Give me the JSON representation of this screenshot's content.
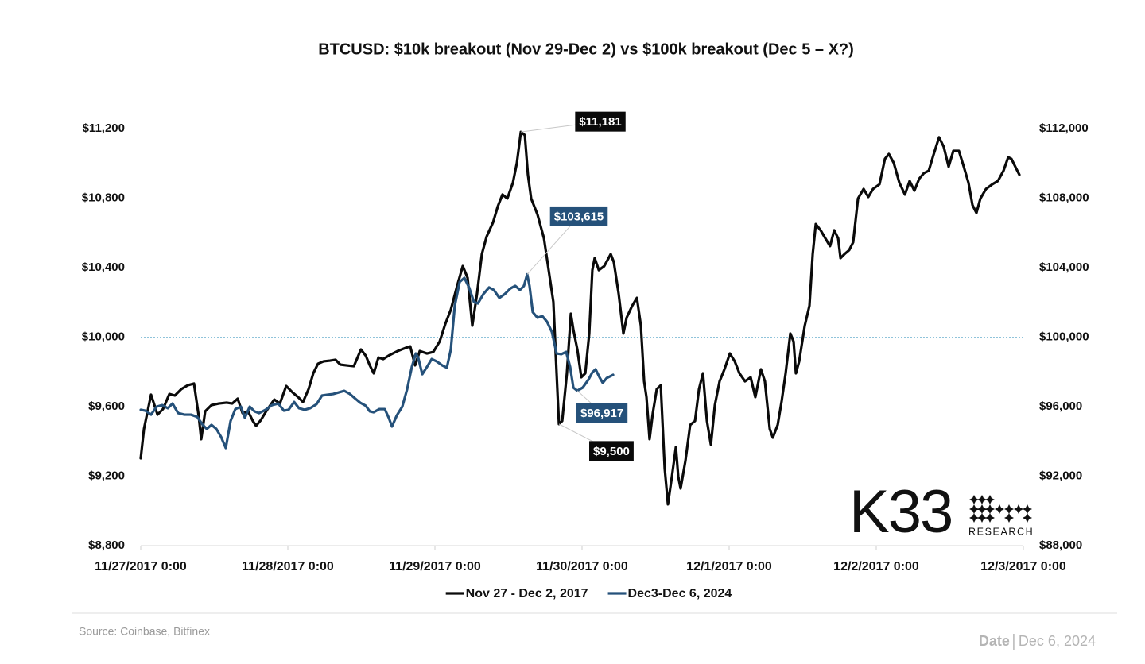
{
  "chart_data": {
    "type": "line",
    "title": "BTCUSD: $10k breakout (Nov 29-Dec 2) vs $100k breakout (Dec 5 – X?)",
    "xlim": [
      0,
      6
    ],
    "xticks": [
      {
        "value": 0,
        "label": "11/27/2017 0:00"
      },
      {
        "value": 1,
        "label": "11/28/2017 0:00"
      },
      {
        "value": 2,
        "label": "11/29/2017 0:00"
      },
      {
        "value": 3,
        "label": "11/30/2017 0:00"
      },
      {
        "value": 4,
        "label": "12/1/2017 0:00"
      },
      {
        "value": 5,
        "label": "12/2/2017 0:00"
      },
      {
        "value": 6,
        "label": "12/3/2017 0:00"
      }
    ],
    "ylim": [
      8800,
      11200
    ],
    "yticks": [
      {
        "value": 8800,
        "label": "$8,800"
      },
      {
        "value": 9200,
        "label": "$9,200"
      },
      {
        "value": 9600,
        "label": "$9,600"
      },
      {
        "value": 10000,
        "label": "$10,000"
      },
      {
        "value": 10400,
        "label": "$10,400"
      },
      {
        "value": 10800,
        "label": "$10,800"
      },
      {
        "value": 11200,
        "label": "$11,200"
      }
    ],
    "y2lim": [
      88000,
      112000
    ],
    "y2ticks": [
      {
        "value": 88000,
        "label": "$88,000"
      },
      {
        "value": 92000,
        "label": "$92,000"
      },
      {
        "value": 96000,
        "label": "$96,000"
      },
      {
        "value": 100000,
        "label": "$100,000"
      },
      {
        "value": 104000,
        "label": "$104,000"
      },
      {
        "value": 108000,
        "label": "$108,000"
      },
      {
        "value": 112000,
        "label": "$112,000"
      }
    ],
    "reference_line": 10000,
    "legend": "bottom",
    "series": [
      {
        "name": "Nov 27 - Dec 2, 2017",
        "color": "#0a0a0a",
        "axis": "y",
        "x": [
          0,
          0.022,
          0.07,
          0.114,
          0.151,
          0.195,
          0.232,
          0.276,
          0.319,
          0.362,
          0.395,
          0.411,
          0.438,
          0.481,
          0.53,
          0.584,
          0.622,
          0.659,
          0.692,
          0.73,
          0.762,
          0.784,
          0.816,
          0.859,
          0.908,
          0.946,
          0.989,
          1.032,
          1.07,
          1.103,
          1.141,
          1.173,
          1.205,
          1.243,
          1.286,
          1.324,
          1.357,
          1.395,
          1.449,
          1.497,
          1.53,
          1.557,
          1.584,
          1.616,
          1.649,
          1.692,
          1.746,
          1.8,
          1.832,
          1.865,
          1.897,
          1.946,
          1.989,
          2.032,
          2.07,
          2.108,
          2.151,
          2.189,
          2.222,
          2.254,
          2.286,
          2.319,
          2.351,
          2.395,
          2.427,
          2.459,
          2.492,
          2.53,
          2.557,
          2.584,
          2.611,
          2.632,
          2.654,
          2.697,
          2.741,
          2.773,
          2.805,
          2.827,
          2.843,
          2.865,
          2.897,
          2.924,
          2.941,
          2.968,
          2.995,
          3.022,
          3.049,
          3.07,
          3.086,
          3.114,
          3.151,
          3.195,
          3.216,
          3.249,
          3.281,
          3.303,
          3.341,
          3.373,
          3.4,
          3.422,
          3.438,
          3.459,
          3.481,
          3.508,
          3.535,
          3.562,
          3.584,
          3.611,
          3.638,
          3.654,
          3.67,
          3.703,
          3.735,
          3.768,
          3.795,
          3.822,
          3.849,
          3.876,
          3.903,
          3.935,
          3.968,
          4.005,
          4.038,
          4.07,
          4.108,
          4.146,
          4.178,
          4.216,
          4.243,
          4.276,
          4.297,
          4.33,
          4.357,
          4.384,
          4.416,
          4.438,
          4.454,
          4.476,
          4.514,
          4.546,
          4.568,
          4.589,
          4.622,
          4.654,
          4.686,
          4.714,
          4.741,
          4.757,
          4.784,
          4.816,
          4.843,
          4.876,
          4.914,
          4.946,
          4.978,
          5.022,
          5.059,
          5.086,
          5.119,
          5.157,
          5.195,
          5.227,
          5.259,
          5.292,
          5.324,
          5.357,
          5.389,
          5.427,
          5.459,
          5.492,
          5.524,
          5.562,
          5.595,
          5.627,
          5.654,
          5.681,
          5.708,
          5.746,
          5.789,
          5.827,
          5.865,
          5.897,
          5.919,
          5.951,
          5.973
        ],
        "values": [
          9303,
          9472,
          9669,
          9554,
          9586,
          9673,
          9664,
          9701,
          9723,
          9733,
          9541,
          9413,
          9573,
          9609,
          9618,
          9623,
          9618,
          9646,
          9563,
          9573,
          9518,
          9490,
          9522,
          9582,
          9641,
          9618,
          9719,
          9682,
          9655,
          9627,
          9701,
          9792,
          9847,
          9861,
          9865,
          9870,
          9842,
          9838,
          9833,
          9929,
          9893,
          9838,
          9792,
          9883,
          9874,
          9897,
          9920,
          9938,
          9947,
          9838,
          9920,
          9906,
          9915,
          9975,
          10075,
          10158,
          10295,
          10409,
          10341,
          10066,
          10249,
          10478,
          10578,
          10661,
          10752,
          10821,
          10798,
          10889,
          11003,
          11181,
          11163,
          10935,
          10798,
          10706,
          10569,
          10386,
          10203,
          9792,
          9500,
          9518,
          9792,
          10135,
          10043,
          9929,
          9769,
          9792,
          10021,
          10386,
          10455,
          10386,
          10409,
          10478,
          10432,
          10249,
          10021,
          10112,
          10181,
          10226,
          10066,
          9746,
          9655,
          9413,
          9563,
          9701,
          9723,
          9243,
          9038,
          9198,
          9367,
          9198,
          9129,
          9289,
          9495,
          9518,
          9701,
          9792,
          9518,
          9381,
          9609,
          9746,
          9815,
          9906,
          9861,
          9792,
          9746,
          9769,
          9655,
          9815,
          9746,
          9472,
          9422,
          9495,
          9632,
          9792,
          10021,
          9975,
          9792,
          9861,
          10066,
          10181,
          10478,
          10651,
          10615,
          10569,
          10524,
          10615,
          10569,
          10455,
          10478,
          10501,
          10546,
          10798,
          10853,
          10807,
          10853,
          10880,
          11026,
          11054,
          11003,
          10889,
          10821,
          10899,
          10843,
          10912,
          10944,
          10958,
          11049,
          11150,
          11095,
          10981,
          11072,
          11072,
          10981,
          10889,
          10761,
          10715,
          10798,
          10853,
          10880,
          10899,
          10958,
          11035,
          11026,
          10971,
          10935
        ],
        "value_labels": [
          null,
          null,
          null,
          null,
          null,
          null,
          null,
          null,
          null,
          null,
          null,
          null,
          null,
          null,
          null,
          null,
          null,
          null,
          null,
          null,
          null,
          null,
          null,
          null,
          null,
          null,
          null,
          null,
          null,
          null,
          null,
          null,
          null,
          null,
          null,
          null,
          null,
          null,
          null,
          null,
          null,
          null,
          null,
          null,
          null,
          null,
          null,
          null,
          null,
          null,
          null,
          null,
          null,
          null,
          null,
          null,
          null,
          null,
          null,
          null,
          null,
          null,
          null,
          null,
          null,
          null,
          null,
          null,
          null,
          "$11,181",
          null,
          null,
          null,
          null,
          null,
          null,
          null,
          null,
          "$9,500",
          null,
          null,
          null,
          null,
          null,
          null,
          null,
          null,
          null,
          null,
          null,
          null,
          null,
          null,
          null,
          null,
          null,
          null,
          null,
          null,
          null,
          null,
          null,
          null,
          null,
          null,
          null,
          null,
          null,
          null,
          null,
          null,
          null,
          null,
          null,
          null,
          null,
          null,
          null,
          null,
          null,
          null,
          null,
          null,
          null,
          null,
          null,
          null,
          null,
          null,
          null,
          null,
          null,
          null,
          null,
          null,
          null,
          null,
          null,
          null,
          null,
          null,
          null,
          null,
          null,
          null,
          null,
          null,
          null,
          null,
          null,
          null,
          null,
          null,
          null,
          null,
          null,
          null,
          null,
          null,
          null,
          null,
          null,
          null,
          null,
          null,
          null,
          null,
          null,
          null,
          null,
          null,
          null,
          null,
          null,
          null,
          null,
          null,
          null,
          null,
          null,
          null,
          null,
          null,
          null,
          null
        ]
      },
      {
        "name": "Dec3-Dec 6, 2024",
        "color": "#25517a",
        "axis": "y2",
        "x": [
          0,
          0.032,
          0.07,
          0.108,
          0.146,
          0.184,
          0.216,
          0.254,
          0.297,
          0.341,
          0.384,
          0.422,
          0.449,
          0.481,
          0.514,
          0.546,
          0.578,
          0.611,
          0.643,
          0.681,
          0.708,
          0.741,
          0.773,
          0.805,
          0.849,
          0.892,
          0.935,
          0.973,
          1.005,
          1.043,
          1.076,
          1.114,
          1.151,
          1.195,
          1.232,
          1.27,
          1.308,
          1.346,
          1.384,
          1.422,
          1.459,
          1.492,
          1.53,
          1.557,
          1.584,
          1.622,
          1.659,
          1.686,
          1.708,
          1.741,
          1.778,
          1.811,
          1.843,
          1.87,
          1.886,
          1.914,
          1.946,
          1.978,
          2.011,
          2.049,
          2.081,
          2.108,
          2.135,
          2.168,
          2.2,
          2.232,
          2.265,
          2.292,
          2.33,
          2.368,
          2.4,
          2.438,
          2.476,
          2.514,
          2.546,
          2.578,
          2.605,
          2.627,
          2.643,
          2.665,
          2.697,
          2.73,
          2.762,
          2.795,
          2.827,
          2.859,
          2.892,
          2.919,
          2.941,
          2.968,
          3.005,
          3.043,
          3.07,
          3.092,
          3.119,
          3.141,
          3.168,
          3.211
        ],
        "values": [
          95820,
          95770,
          95540,
          96000,
          96090,
          95910,
          96180,
          95630,
          95540,
          95540,
          95410,
          94950,
          94720,
          94950,
          94720,
          94260,
          93620,
          95180,
          95860,
          96000,
          95360,
          96000,
          95730,
          95630,
          95820,
          96090,
          96180,
          95770,
          95820,
          96270,
          95910,
          95820,
          95910,
          96140,
          96640,
          96690,
          96730,
          96820,
          96910,
          96730,
          96460,
          96230,
          96050,
          95730,
          95680,
          95860,
          95860,
          95360,
          94860,
          95500,
          96000,
          97010,
          98290,
          99060,
          98830,
          97870,
          98290,
          98740,
          98610,
          98380,
          98240,
          99290,
          101810,
          103180,
          103410,
          102860,
          102030,
          101940,
          102490,
          102860,
          102720,
          102260,
          102490,
          102810,
          102950,
          102720,
          102950,
          103615,
          102950,
          101440,
          101120,
          101210,
          100890,
          100300,
          99060,
          99020,
          99150,
          98290,
          97100,
          96917,
          97100,
          97550,
          97970,
          98150,
          97690,
          97370,
          97650,
          97830
        ],
        "value_labels": [
          null,
          null,
          null,
          null,
          null,
          null,
          null,
          null,
          null,
          null,
          null,
          null,
          null,
          null,
          null,
          null,
          null,
          null,
          null,
          null,
          null,
          null,
          null,
          null,
          null,
          null,
          null,
          null,
          null,
          null,
          null,
          null,
          null,
          null,
          null,
          null,
          null,
          null,
          null,
          null,
          null,
          null,
          null,
          null,
          null,
          null,
          null,
          null,
          null,
          null,
          null,
          null,
          null,
          null,
          null,
          null,
          null,
          null,
          null,
          null,
          null,
          null,
          null,
          null,
          null,
          null,
          null,
          null,
          null,
          null,
          null,
          null,
          null,
          null,
          null,
          null,
          null,
          "$103,615",
          null,
          null,
          null,
          null,
          null,
          null,
          null,
          null,
          null,
          null,
          null,
          "$96,917",
          null,
          null,
          null,
          null,
          null,
          null,
          null,
          null
        ]
      }
    ],
    "logo": "K33",
    "logo_subtitle": "RESEARCH",
    "source": "Source:  Coinbase, Bitfinex",
    "date_label": "Date",
    "date": "Dec 6, 2024"
  }
}
